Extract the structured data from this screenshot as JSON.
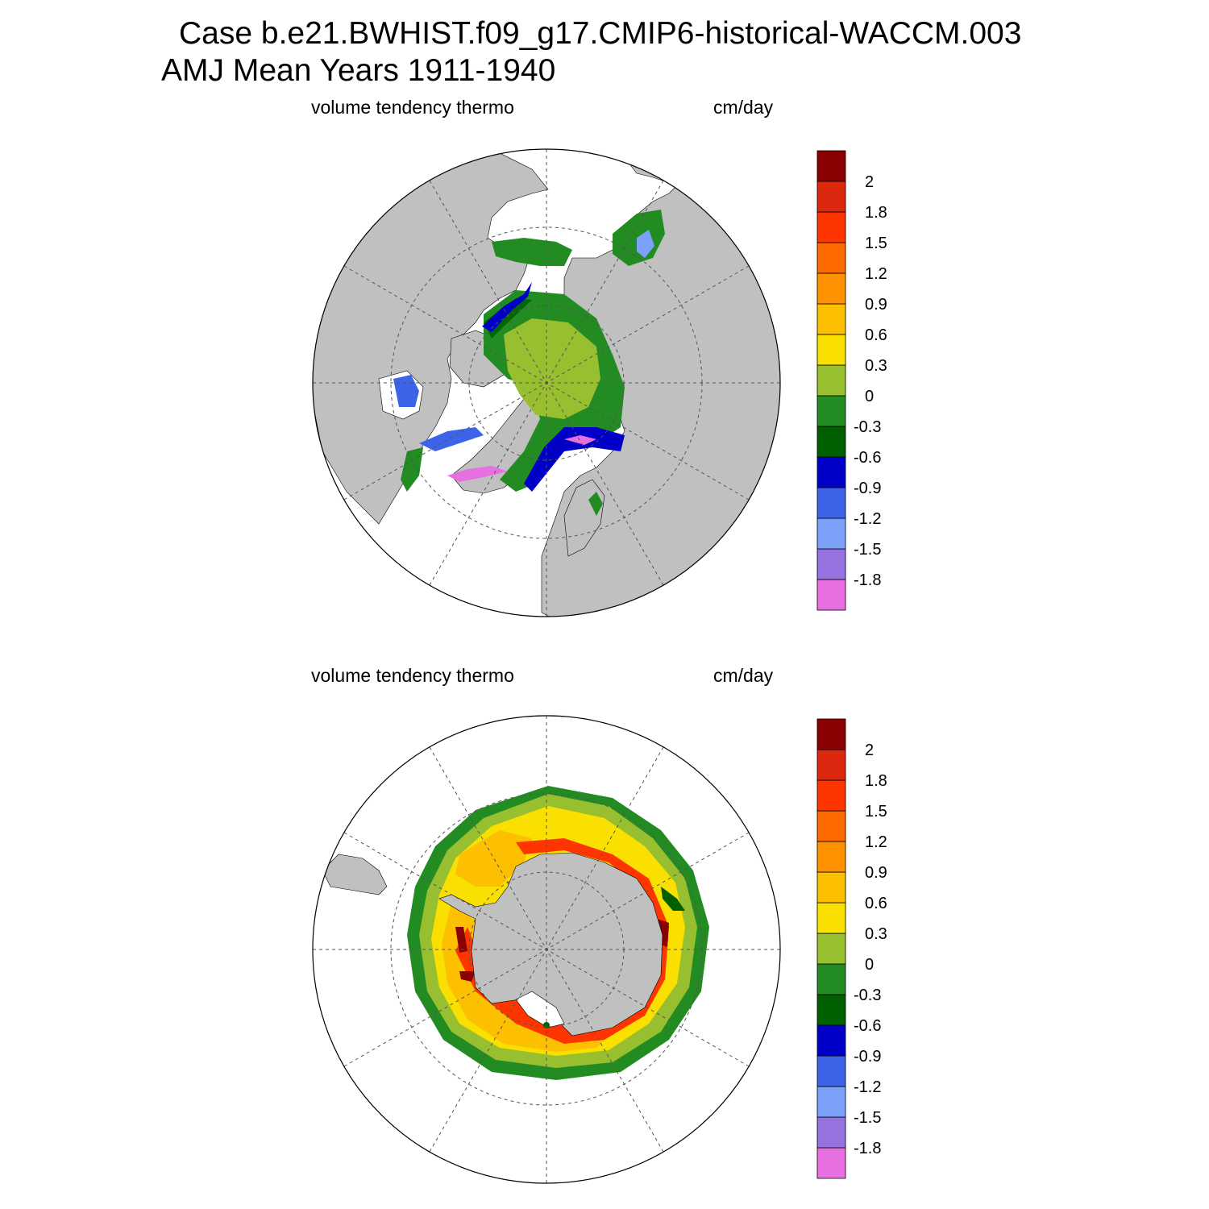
{
  "header": {
    "case_line": "Case b.e21.BWHIST.f09_g17.CMIP6-historical-WACCM.003",
    "period_line": "AMJ Mean   Years 1911-1940"
  },
  "panels": [
    {
      "id": "north",
      "variable": "volume tendency thermo",
      "units": "cm/day"
    },
    {
      "id": "south",
      "variable": "volume tendency thermo",
      "units": "cm/day"
    }
  ],
  "colorbar": {
    "colors": [
      "#e770e0",
      "#9672e0",
      "#7ba0f7",
      "#3d64e8",
      "#0000c6",
      "#006000",
      "#228c22",
      "#98bf30",
      "#fae000",
      "#fdc000",
      "#fd9100",
      "#ff6a00",
      "#ff3500",
      "#dd2810",
      "#8b0000"
    ],
    "labels": [
      "-1.8",
      "-1.5",
      "-1.2",
      "-0.9",
      "-0.6",
      "-0.3",
      "0",
      "0.3",
      "0.6",
      "0.9",
      "1.2",
      "1.5",
      "1.8",
      "2"
    ]
  },
  "land_color": "#c0c0c0"
}
